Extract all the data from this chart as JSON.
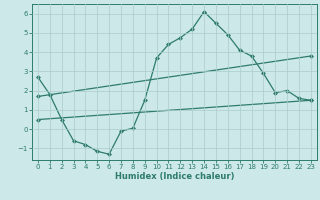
{
  "xlabel": "Humidex (Indice chaleur)",
  "bg_color": "#cce8e8",
  "line_color": "#2e7b6e",
  "grid_color": "#aacccc",
  "xlim": [
    -0.5,
    23.5
  ],
  "ylim": [
    -1.6,
    6.5
  ],
  "yticks": [
    -1,
    0,
    1,
    2,
    3,
    4,
    5,
    6
  ],
  "xticks": [
    0,
    1,
    2,
    3,
    4,
    5,
    6,
    7,
    8,
    9,
    10,
    11,
    12,
    13,
    14,
    15,
    16,
    17,
    18,
    19,
    20,
    21,
    22,
    23
  ],
  "line1_x": [
    0,
    1,
    2,
    3,
    4,
    5,
    6,
    7,
    8,
    9,
    10,
    11,
    12,
    13,
    14,
    15,
    16,
    17,
    18,
    19,
    20,
    21,
    22,
    23
  ],
  "line1_y": [
    2.7,
    1.8,
    0.5,
    -0.6,
    -0.8,
    -1.15,
    -1.3,
    -0.1,
    0.05,
    1.5,
    3.7,
    4.4,
    4.75,
    5.2,
    6.1,
    5.5,
    4.9,
    4.1,
    3.8,
    2.9,
    1.9,
    2.0,
    1.6,
    1.5
  ],
  "line2_x": [
    0,
    23
  ],
  "line2_y": [
    0.5,
    1.5
  ],
  "line3_x": [
    0,
    23
  ],
  "line3_y": [
    1.7,
    3.8
  ],
  "marker": "D",
  "markersize": 2.0,
  "linewidth": 0.9,
  "tick_labelsize": 5.0,
  "xlabel_fontsize": 6.0
}
